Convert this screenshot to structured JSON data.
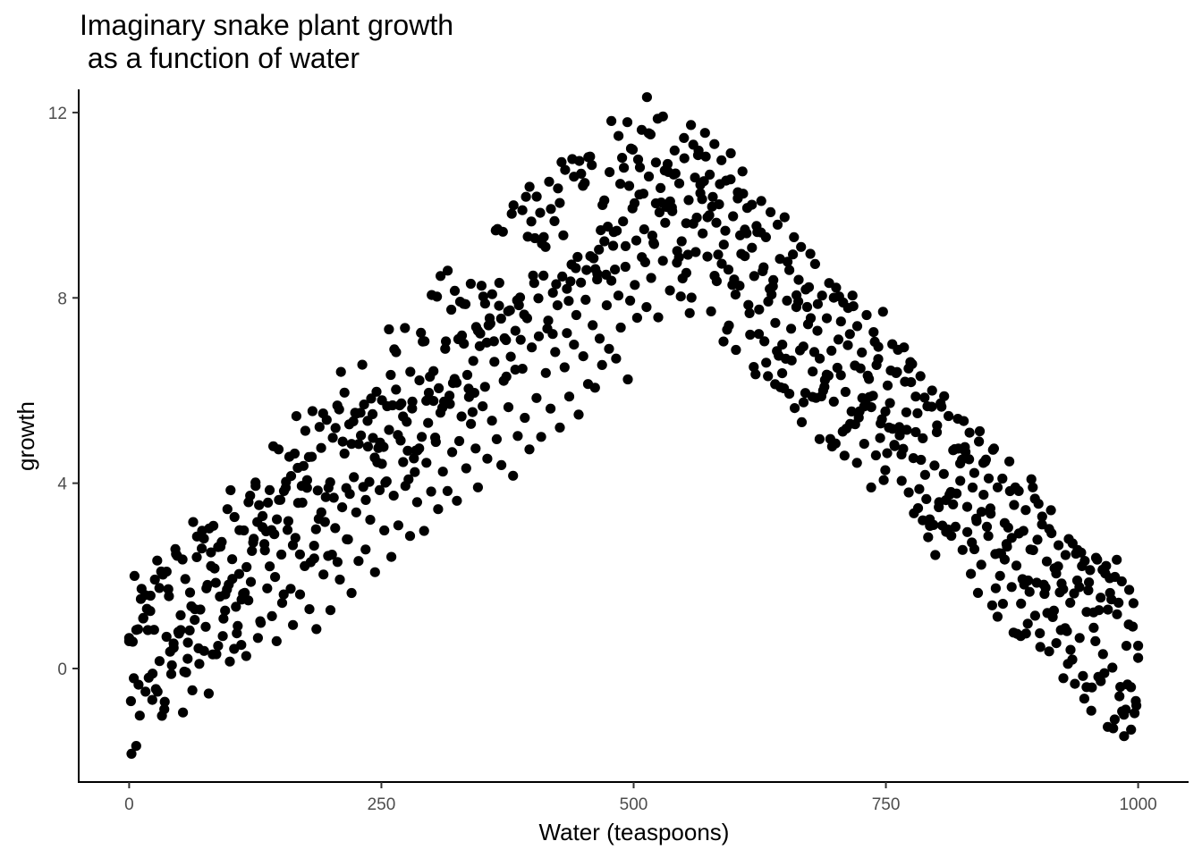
{
  "chart_data": {
    "type": "scatter",
    "title": "Imaginary snake plant growth\n as a function of water",
    "xlabel": "Water (teaspoons)",
    "ylabel": "growth",
    "xlim": [
      -50,
      1050
    ],
    "ylim": [
      -2.45,
      12.5
    ],
    "xticks": [
      0,
      250,
      500,
      750,
      1000
    ],
    "yticks": [
      0,
      4,
      8,
      12
    ],
    "xtick_labels": [
      "0",
      "250",
      "500",
      "750",
      "1000"
    ],
    "ytick_labels": [
      "0",
      "4",
      "8",
      "12"
    ],
    "grid": false,
    "point_color": "#000000",
    "n_points": 1000,
    "trend": "tent: growth ≈ 0.0215·x + uniform(-1.9, 1.9) for x ≤ 500, ≈ 0.0215·(1000 − x) + uniform(-1.9, 1.9) for x > 500; peak ≈ 11.8 near x = 495, minimum ≈ -1.8 near x = 0",
    "y": [
      0.66,
      -1.84,
      -0.21,
      -1.67,
      -0.35,
      1.5,
      1.08,
      -0.5,
      0.83,
      1.24,
      -0.11,
      1.92,
      2.33,
      0.16,
      -1.02,
      -0.88,
      2.09,
      1.56,
      -0.12,
      0.54,
      2.47,
      0.79,
      1.15,
      -0.95,
      1.93,
      0.21,
      1.64,
      -0.47,
      1.05,
      2.85,
      0.1,
      2.59,
      0.38,
      1.73,
      -0.54,
      2.21,
      3.08,
      1.85,
      0.49,
      2.63,
      0.7,
      1.25,
      3.44,
      0.15,
      2.36,
      3.27,
      0.76,
      2.04,
      1.49,
      2.98,
      0.27,
      3.59,
      1.87,
      2.72,
      3.94,
      0.66,
      1.02,
      3.29,
      2.55,
      1.73,
      3.85,
      1.13,
      2.9,
      0.59,
      3.64,
      2.46,
      1.6,
      4.03,
      3.18,
      1.72,
      0.94,
      2.82,
      4.33,
      1.6,
      3.58,
      2.21,
      3.9,
      1.28,
      4.57,
      2.65,
      0.85,
      3.23,
      4.76,
      2.03,
      3.7,
      2.43,
      1.26,
      4.98,
      3.03,
      2.3,
      1.92,
      3.48,
      4.64,
      2.79,
      5.27,
      1.63,
      4.13,
      3.37,
      2.32,
      5.03,
      3.92,
      2.57,
      4.79,
      3.21,
      5.49,
      2.08,
      4.45,
      3.85,
      5.79,
      2.98,
      4.04,
      5.15,
      2.41,
      3.73,
      6.02,
      3.09,
      4.92,
      5.44,
      3.94,
      4.7,
      2.86,
      5.76,
      4.24,
      3.59,
      6.22,
      5.0,
      2.97,
      4.44,
      5.95,
      3.82,
      6.42,
      4.89,
      3.44,
      5.52,
      4.25,
      6.9,
      3.83,
      5.71,
      4.67,
      6.25,
      3.62,
      4.91,
      5.44,
      7.01,
      4.32,
      6.04,
      5.28,
      6.64,
      4.75,
      3.91,
      7.23,
      5.66,
      6.08,
      4.53,
      7.56,
      5.35,
      6.62,
      4.95,
      7.83,
      4.39,
      6.21,
      7.09,
      5.64,
      6.73,
      4.16,
      7.29,
      5.02,
      8.01,
      6.47,
      5.41,
      7.56,
      4.73,
      6.93,
      8.32,
      5.84,
      7.17,
      5.0,
      8.48,
      6.38,
      7.51,
      5.61,
      8.11,
      6.83,
      7.84,
      5.2,
      8.46,
      6.5,
      7.24,
      5.87,
      8.72,
      6.99,
      7.63,
      5.48,
      8.33,
      6.74,
      7.96,
      6.14,
      8.9,
      7.41,
      6.06,
      8.52,
      7.12,
      6.55,
      9.22,
      7.84,
      6.9,
      8.37,
      9.42,
      6.69,
      8.05,
      7.36,
      9.65,
      8.67,
      6.24,
      7.94,
      9.93,
      8.28,
      7.57,
      10.23,
      8.88,
      9.48,
      7.8,
      10.62,
      8.43,
      9.19,
      10.04,
      7.58,
      10.37,
      8.8,
      9.62,
      10.89,
      8.16,
      9.87,
      11.18,
      8.76,
      10.47,
      9.22,
      11.45,
      8.54,
      10.11,
      11.73,
      9.6,
      8.99,
      11.08,
      10.26,
      9.39,
      11.56,
      8.89,
      10.66,
      9.97,
      11.32,
      8.36,
      10.02,
      10.97,
      9.15,
      10.53,
      8.61,
      11.12,
      9.76,
      8.07,
      10.28,
      9.35,
      10.73,
      8.9,
      9.94,
      7.67,
      10.01,
      8.47,
      9.55,
      7.22,
      10.09,
      8.66,
      9.31,
      7.92,
      9.85,
      8.25,
      7.46,
      9.58,
      8.84,
      6.99,
      9.74,
      7.94,
      8.6,
      6.65,
      9.31,
      7.8,
      8.39,
      9.1,
      6.95,
      8.18,
      7.43,
      8.95,
      6.41,
      8.73,
      7.29,
      6.69,
      8.05,
      6.08,
      7.56,
      8.32,
      6.86,
      5.76,
      8.22,
      7.1,
      6.33,
      7.9,
      5.97,
      6.98,
      5.28,
      8.05,
      6.54,
      7.39,
      5.55,
      6.82,
      4.85,
      7.63,
      6.25,
      5.64,
      7.26,
      4.6,
      6.68,
      5.29,
      7.7,
      4.28,
      6.11,
      5.73,
      7.0,
      4.8,
      6.4,
      5.21,
      4.05,
      6.93,
      5.53,
      3.8,
      6.18,
      4.54,
      5.87,
      3.46,
      6.31,
      4.97,
      4.18,
      5.66,
      3.22,
      6.0,
      4.38,
      5.1,
      3.59,
      5.65,
      4.2,
      2.95,
      5.45,
      3.81,
      4.71,
      3.06,
      5.39,
      4.05,
      2.56,
      4.78,
      3.49,
      5.09,
      2.72,
      4.22,
      3.18,
      4.9,
      2.24,
      3.75,
      4.51,
      2.86,
      3.34,
      4.72,
      2.47,
      3.91,
      2.0,
      4.1,
      3.14,
      2.63,
      4.47,
      1.76,
      3.53,
      2.22,
      3.83,
      1.4,
      2.97,
      3.42,
      1.9,
      2.57,
      3.91,
      1.14,
      2.78,
      0.76,
      3.28,
      1.61,
      2.31,
      0.37,
      2.92,
      1.25,
      2.05,
      2.66,
      0.83,
      1.71,
      2.45,
      0.1,
      1.42,
      2.7,
      -0.33,
      1.9,
      0.66,
      2.21,
      -0.65,
      1.22,
      1.86,
      -0.91,
      0.88,
      2.39,
      -0.18,
      1.53,
      0.31,
      2.05,
      -1.26,
      1.63,
      0.02,
      -1.1,
      1.17,
      -0.6,
      1.88,
      -1.46,
      0.49,
      0.95,
      -1.32,
      1.41,
      -0.7,
      0.23
    ],
    "points_note": "the array y above is an illustrative subsample read along the band; x spans 0–1000 evenly, and the full scatter is regenerated deterministically from the trend"
  }
}
